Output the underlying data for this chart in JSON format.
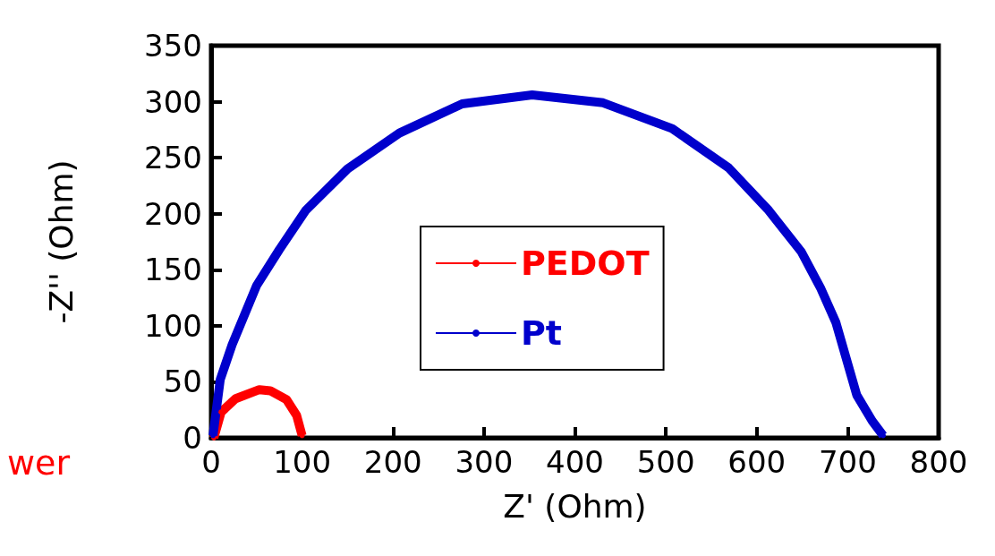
{
  "chart_data": {
    "type": "line",
    "xlabel": "Z' (Ohm)",
    "ylabel": "-Z'' (Ohm)",
    "xlim": [
      0,
      800
    ],
    "xticks": [
      0,
      100,
      200,
      300,
      400,
      500,
      600,
      700,
      800
    ],
    "ylim": [
      0,
      350
    ],
    "yticks": [
      0,
      50,
      100,
      150,
      200,
      250,
      300,
      350
    ],
    "grid": false,
    "legend": "center",
    "marker": "circle",
    "line_style": "solid",
    "annotations": [
      "wer"
    ],
    "series": [
      {
        "name": "PEDOT",
        "color": "#ff0000",
        "x": [
          3,
          11,
          27,
          53,
          65,
          83,
          94,
          100
        ],
        "values": [
          0,
          23,
          35,
          43,
          42,
          34,
          20,
          2
        ]
      },
      {
        "name": "Pt",
        "color": "#0000cc",
        "x": [
          2,
          10,
          23,
          50,
          75,
          104,
          150,
          207,
          276,
          353,
          431,
          507,
          569,
          612,
          649,
          670,
          687,
          710,
          727,
          739
        ],
        "values": [
          2,
          52,
          83,
          136,
          168,
          203,
          240,
          272,
          298,
          306,
          299,
          276,
          241,
          204,
          166,
          134,
          103,
          38,
          15,
          2
        ]
      }
    ]
  }
}
